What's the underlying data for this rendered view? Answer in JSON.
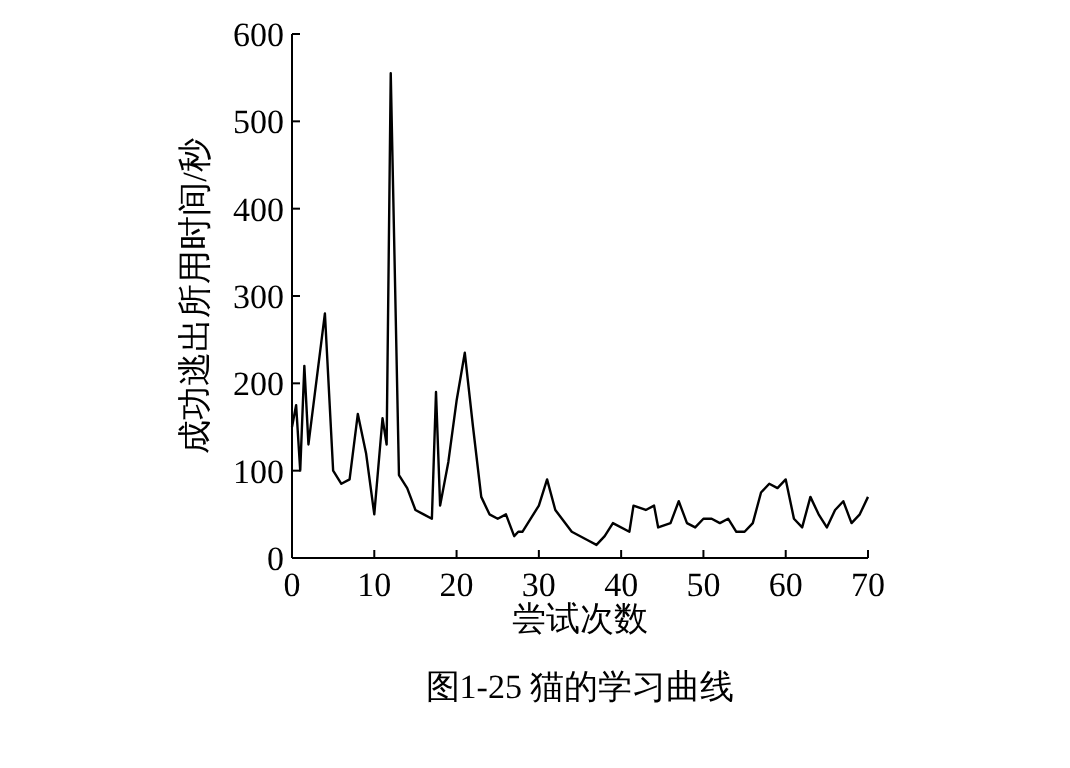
{
  "chart_data": {
    "type": "line",
    "xlabel": "尝试次数",
    "ylabel": "成功逃出所用时间/秒",
    "annotations": [
      "图1-25    猫的学习曲线"
    ],
    "xlim": [
      0,
      70
    ],
    "ylim": [
      0,
      600
    ],
    "xticks": [
      0,
      10,
      20,
      30,
      40,
      50,
      60,
      70
    ],
    "yticks": [
      0,
      100,
      200,
      300,
      400,
      500,
      600
    ],
    "grid": false,
    "marker": "none",
    "line_style": "solid",
    "series": [
      {
        "color": "#000000",
        "x": [
          0,
          0.5,
          1,
          1.5,
          2,
          4,
          5,
          6,
          7,
          8,
          9,
          10,
          11,
          11.5,
          12,
          13,
          14,
          15,
          16,
          17,
          17.5,
          18,
          19,
          20,
          21,
          22,
          23,
          24,
          25,
          26,
          27,
          27.5,
          28,
          30,
          31,
          32,
          34,
          36,
          37,
          38,
          39,
          41,
          41.5,
          43,
          44,
          44.5,
          46,
          47,
          48,
          49,
          50,
          51,
          52,
          53,
          54,
          55,
          56,
          57,
          58,
          59,
          60,
          61,
          62,
          63,
          64,
          65,
          66,
          67,
          68,
          69,
          70
        ],
        "values": [
          150,
          175,
          100,
          220,
          130,
          280,
          100,
          85,
          90,
          165,
          120,
          50,
          160,
          130,
          555,
          95,
          80,
          55,
          50,
          45,
          190,
          60,
          110,
          180,
          235,
          150,
          70,
          50,
          45,
          50,
          25,
          30,
          30,
          60,
          90,
          55,
          30,
          20,
          15,
          25,
          40,
          30,
          60,
          55,
          60,
          35,
          40,
          65,
          40,
          35,
          45,
          45,
          40,
          45,
          30,
          30,
          40,
          75,
          85,
          80,
          90,
          45,
          35,
          70,
          50,
          35,
          55,
          65,
          40,
          50,
          70
        ]
      }
    ]
  }
}
